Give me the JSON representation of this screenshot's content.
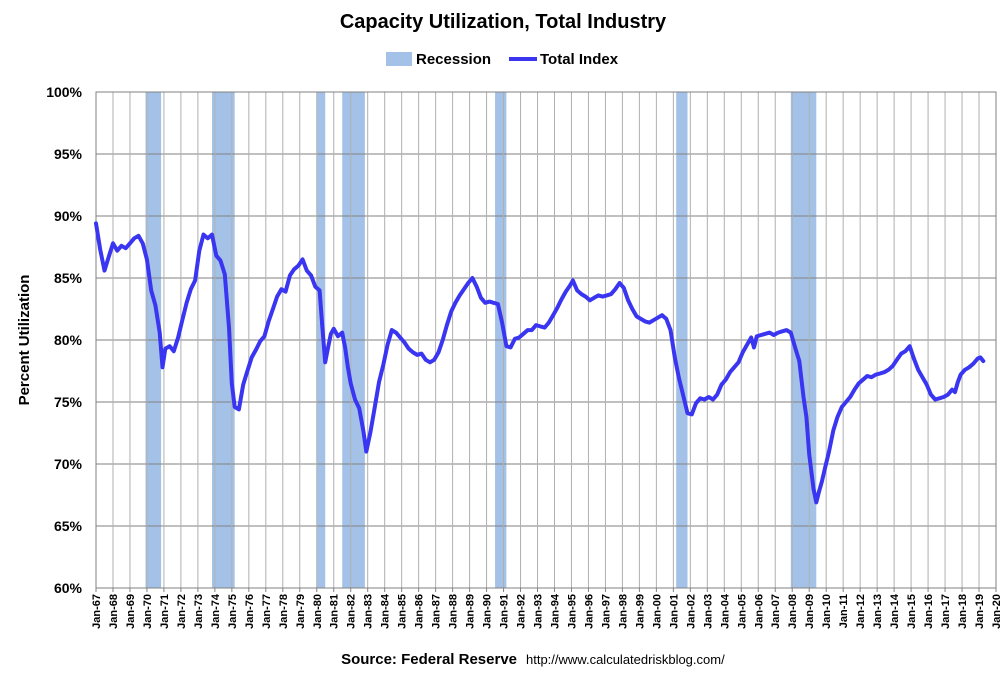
{
  "chart_data": {
    "type": "line",
    "title": "Capacity Utilization, Total Industry",
    "ylabel": "Percent Utilization",
    "xlabel": "",
    "ylim": [
      60,
      100
    ],
    "y_tick_values": [
      60,
      65,
      70,
      75,
      80,
      85,
      90,
      95,
      100
    ],
    "y_tick_labels": [
      "60%",
      "65%",
      "70%",
      "75%",
      "80%",
      "85%",
      "90%",
      "95%",
      "100%"
    ],
    "x_range": [
      "1967-01",
      "2020-01"
    ],
    "x_tick_labels": [
      "Jan-67",
      "Jan-68",
      "Jan-69",
      "Jan-70",
      "Jan-71",
      "Jan-72",
      "Jan-73",
      "Jan-74",
      "Jan-75",
      "Jan-76",
      "Jan-77",
      "Jan-78",
      "Jan-79",
      "Jan-80",
      "Jan-81",
      "Jan-82",
      "Jan-83",
      "Jan-84",
      "Jan-85",
      "Jan-86",
      "Jan-87",
      "Jan-88",
      "Jan-89",
      "Jan-90",
      "Jan-91",
      "Jan-92",
      "Jan-93",
      "Jan-94",
      "Jan-95",
      "Jan-96",
      "Jan-97",
      "Jan-98",
      "Jan-99",
      "Jan-00",
      "Jan-01",
      "Jan-02",
      "Jan-03",
      "Jan-04",
      "Jan-05",
      "Jan-06",
      "Jan-07",
      "Jan-08",
      "Jan-09",
      "Jan-10",
      "Jan-11",
      "Jan-12",
      "Jan-13",
      "Jan-14",
      "Jan-15",
      "Jan-16",
      "Jan-17",
      "Jan-18",
      "Jan-19",
      "Jan-20"
    ],
    "grid": true,
    "legend_position": "top-center",
    "legend": [
      {
        "label": "Recession",
        "color": "#a4c2e8"
      },
      {
        "label": "Total Index",
        "color": "#3a35f0"
      }
    ],
    "recessions": [
      {
        "start": "1969-12",
        "end": "1970-11"
      },
      {
        "start": "1973-11",
        "end": "1975-03"
      },
      {
        "start": "1980-01",
        "end": "1980-07"
      },
      {
        "start": "1981-07",
        "end": "1982-11"
      },
      {
        "start": "1990-07",
        "end": "1991-03"
      },
      {
        "start": "2001-03",
        "end": "2001-11"
      },
      {
        "start": "2007-12",
        "end": "2009-06"
      }
    ],
    "series": [
      {
        "name": "Total Index",
        "color": "#3a35f0",
        "points": [
          [
            "1967-01",
            89.4
          ],
          [
            "1967-04",
            87.3
          ],
          [
            "1967-07",
            85.6
          ],
          [
            "1967-10",
            86.7
          ],
          [
            "1968-01",
            87.8
          ],
          [
            "1968-04",
            87.2
          ],
          [
            "1968-07",
            87.6
          ],
          [
            "1968-10",
            87.4
          ],
          [
            "1969-01",
            87.8
          ],
          [
            "1969-04",
            88.2
          ],
          [
            "1969-07",
            88.4
          ],
          [
            "1969-10",
            87.8
          ],
          [
            "1970-01",
            86.5
          ],
          [
            "1970-04",
            84.0
          ],
          [
            "1970-07",
            82.8
          ],
          [
            "1970-10",
            80.6
          ],
          [
            "1970-12",
            77.8
          ],
          [
            "1971-02",
            79.3
          ],
          [
            "1971-05",
            79.5
          ],
          [
            "1971-08",
            79.1
          ],
          [
            "1971-11",
            80.2
          ],
          [
            "1972-02",
            81.6
          ],
          [
            "1972-05",
            83.0
          ],
          [
            "1972-08",
            84.1
          ],
          [
            "1972-11",
            84.8
          ],
          [
            "1973-02",
            87.2
          ],
          [
            "1973-05",
            88.5
          ],
          [
            "1973-08",
            88.2
          ],
          [
            "1973-11",
            88.5
          ],
          [
            "1974-02",
            86.8
          ],
          [
            "1974-05",
            86.4
          ],
          [
            "1974-08",
            85.3
          ],
          [
            "1974-11",
            81.0
          ],
          [
            "1975-01",
            76.5
          ],
          [
            "1975-03",
            74.6
          ],
          [
            "1975-06",
            74.4
          ],
          [
            "1975-09",
            76.4
          ],
          [
            "1975-12",
            77.5
          ],
          [
            "1976-03",
            78.6
          ],
          [
            "1976-06",
            79.2
          ],
          [
            "1976-09",
            79.9
          ],
          [
            "1976-12",
            80.3
          ],
          [
            "1977-03",
            81.5
          ],
          [
            "1977-06",
            82.5
          ],
          [
            "1977-09",
            83.5
          ],
          [
            "1977-12",
            84.1
          ],
          [
            "1978-03",
            83.9
          ],
          [
            "1978-06",
            85.2
          ],
          [
            "1978-09",
            85.7
          ],
          [
            "1978-12",
            86.0
          ],
          [
            "1979-03",
            86.5
          ],
          [
            "1979-06",
            85.6
          ],
          [
            "1979-09",
            85.2
          ],
          [
            "1979-12",
            84.3
          ],
          [
            "1980-03",
            84.0
          ],
          [
            "1980-05",
            81.0
          ],
          [
            "1980-07",
            78.2
          ],
          [
            "1980-09",
            79.4
          ],
          [
            "1980-11",
            80.5
          ],
          [
            "1981-01",
            80.9
          ],
          [
            "1981-04",
            80.3
          ],
          [
            "1981-07",
            80.6
          ],
          [
            "1981-09",
            79.4
          ],
          [
            "1981-11",
            77.8
          ],
          [
            "1982-01",
            76.5
          ],
          [
            "1982-04",
            75.2
          ],
          [
            "1982-07",
            74.5
          ],
          [
            "1982-10",
            72.6
          ],
          [
            "1982-12",
            71.0
          ],
          [
            "1983-03",
            72.6
          ],
          [
            "1983-06",
            74.6
          ],
          [
            "1983-09",
            76.6
          ],
          [
            "1983-12",
            78.0
          ],
          [
            "1984-03",
            79.6
          ],
          [
            "1984-06",
            80.8
          ],
          [
            "1984-09",
            80.6
          ],
          [
            "1984-12",
            80.2
          ],
          [
            "1985-03",
            79.8
          ],
          [
            "1985-06",
            79.3
          ],
          [
            "1985-09",
            79.0
          ],
          [
            "1985-12",
            78.8
          ],
          [
            "1986-03",
            78.9
          ],
          [
            "1986-06",
            78.4
          ],
          [
            "1986-09",
            78.2
          ],
          [
            "1986-12",
            78.4
          ],
          [
            "1987-03",
            79.0
          ],
          [
            "1987-06",
            80.0
          ],
          [
            "1987-09",
            81.2
          ],
          [
            "1987-12",
            82.3
          ],
          [
            "1988-03",
            83.0
          ],
          [
            "1988-06",
            83.6
          ],
          [
            "1988-09",
            84.1
          ],
          [
            "1988-12",
            84.6
          ],
          [
            "1989-03",
            85.0
          ],
          [
            "1989-06",
            84.3
          ],
          [
            "1989-09",
            83.4
          ],
          [
            "1989-12",
            83.0
          ],
          [
            "1990-03",
            83.1
          ],
          [
            "1990-06",
            83.0
          ],
          [
            "1990-09",
            82.9
          ],
          [
            "1990-12",
            81.4
          ],
          [
            "1991-03",
            79.5
          ],
          [
            "1991-06",
            79.4
          ],
          [
            "1991-09",
            80.1
          ],
          [
            "1991-12",
            80.2
          ],
          [
            "1992-03",
            80.5
          ],
          [
            "1992-06",
            80.8
          ],
          [
            "1992-09",
            80.8
          ],
          [
            "1992-12",
            81.2
          ],
          [
            "1993-03",
            81.1
          ],
          [
            "1993-06",
            81.0
          ],
          [
            "1993-09",
            81.4
          ],
          [
            "1993-12",
            82.0
          ],
          [
            "1994-03",
            82.6
          ],
          [
            "1994-06",
            83.3
          ],
          [
            "1994-09",
            83.9
          ],
          [
            "1994-12",
            84.4
          ],
          [
            "1995-02",
            84.8
          ],
          [
            "1995-05",
            84.0
          ],
          [
            "1995-08",
            83.7
          ],
          [
            "1995-11",
            83.5
          ],
          [
            "1996-02",
            83.2
          ],
          [
            "1996-05",
            83.4
          ],
          [
            "1996-08",
            83.6
          ],
          [
            "1996-11",
            83.5
          ],
          [
            "1997-02",
            83.6
          ],
          [
            "1997-05",
            83.7
          ],
          [
            "1997-08",
            84.1
          ],
          [
            "1997-11",
            84.6
          ],
          [
            "1998-02",
            84.2
          ],
          [
            "1998-05",
            83.2
          ],
          [
            "1998-08",
            82.5
          ],
          [
            "1998-11",
            81.9
          ],
          [
            "1999-02",
            81.7
          ],
          [
            "1999-05",
            81.5
          ],
          [
            "1999-08",
            81.4
          ],
          [
            "1999-11",
            81.6
          ],
          [
            "2000-02",
            81.8
          ],
          [
            "2000-05",
            82.0
          ],
          [
            "2000-08",
            81.7
          ],
          [
            "2000-11",
            80.8
          ],
          [
            "2001-02",
            78.6
          ],
          [
            "2001-05",
            76.9
          ],
          [
            "2001-08",
            75.5
          ],
          [
            "2001-11",
            74.1
          ],
          [
            "2002-02",
            74.0
          ],
          [
            "2002-05",
            74.9
          ],
          [
            "2002-08",
            75.3
          ],
          [
            "2002-11",
            75.2
          ],
          [
            "2003-02",
            75.4
          ],
          [
            "2003-05",
            75.2
          ],
          [
            "2003-08",
            75.6
          ],
          [
            "2003-11",
            76.4
          ],
          [
            "2004-02",
            76.8
          ],
          [
            "2004-05",
            77.4
          ],
          [
            "2004-08",
            77.8
          ],
          [
            "2004-11",
            78.2
          ],
          [
            "2005-02",
            79.0
          ],
          [
            "2005-05",
            79.6
          ],
          [
            "2005-08",
            80.2
          ],
          [
            "2005-10",
            79.4
          ],
          [
            "2005-12",
            80.3
          ],
          [
            "2006-03",
            80.4
          ],
          [
            "2006-06",
            80.5
          ],
          [
            "2006-09",
            80.6
          ],
          [
            "2006-12",
            80.4
          ],
          [
            "2007-03",
            80.6
          ],
          [
            "2007-06",
            80.7
          ],
          [
            "2007-09",
            80.8
          ],
          [
            "2007-12",
            80.6
          ],
          [
            "2008-03",
            79.4
          ],
          [
            "2008-06",
            78.3
          ],
          [
            "2008-09",
            75.4
          ],
          [
            "2008-11",
            73.8
          ],
          [
            "2009-01",
            70.8
          ],
          [
            "2009-04",
            68.0
          ],
          [
            "2009-06",
            66.9
          ],
          [
            "2009-08",
            67.8
          ],
          [
            "2009-10",
            68.6
          ],
          [
            "2009-12",
            69.6
          ],
          [
            "2010-03",
            71.0
          ],
          [
            "2010-06",
            72.7
          ],
          [
            "2010-09",
            73.8
          ],
          [
            "2010-12",
            74.6
          ],
          [
            "2011-03",
            75.0
          ],
          [
            "2011-06",
            75.4
          ],
          [
            "2011-09",
            76.0
          ],
          [
            "2011-12",
            76.5
          ],
          [
            "2012-03",
            76.8
          ],
          [
            "2012-06",
            77.1
          ],
          [
            "2012-09",
            77.0
          ],
          [
            "2012-12",
            77.2
          ],
          [
            "2013-03",
            77.3
          ],
          [
            "2013-06",
            77.4
          ],
          [
            "2013-09",
            77.6
          ],
          [
            "2013-12",
            77.9
          ],
          [
            "2014-03",
            78.4
          ],
          [
            "2014-06",
            78.9
          ],
          [
            "2014-09",
            79.1
          ],
          [
            "2014-12",
            79.5
          ],
          [
            "2015-03",
            78.5
          ],
          [
            "2015-06",
            77.6
          ],
          [
            "2015-09",
            77.0
          ],
          [
            "2015-12",
            76.4
          ],
          [
            "2016-03",
            75.6
          ],
          [
            "2016-06",
            75.2
          ],
          [
            "2016-09",
            75.3
          ],
          [
            "2016-12",
            75.4
          ],
          [
            "2017-03",
            75.6
          ],
          [
            "2017-06",
            76.0
          ],
          [
            "2017-08",
            75.8
          ],
          [
            "2017-10",
            76.6
          ],
          [
            "2017-12",
            77.2
          ],
          [
            "2018-03",
            77.6
          ],
          [
            "2018-06",
            77.8
          ],
          [
            "2018-09",
            78.1
          ],
          [
            "2018-12",
            78.5
          ],
          [
            "2019-02",
            78.6
          ],
          [
            "2019-04",
            78.3
          ]
        ]
      }
    ]
  },
  "footer": {
    "source": "Source: Federal Reserve",
    "url": "http://www.calculatedriskblog.com/"
  }
}
